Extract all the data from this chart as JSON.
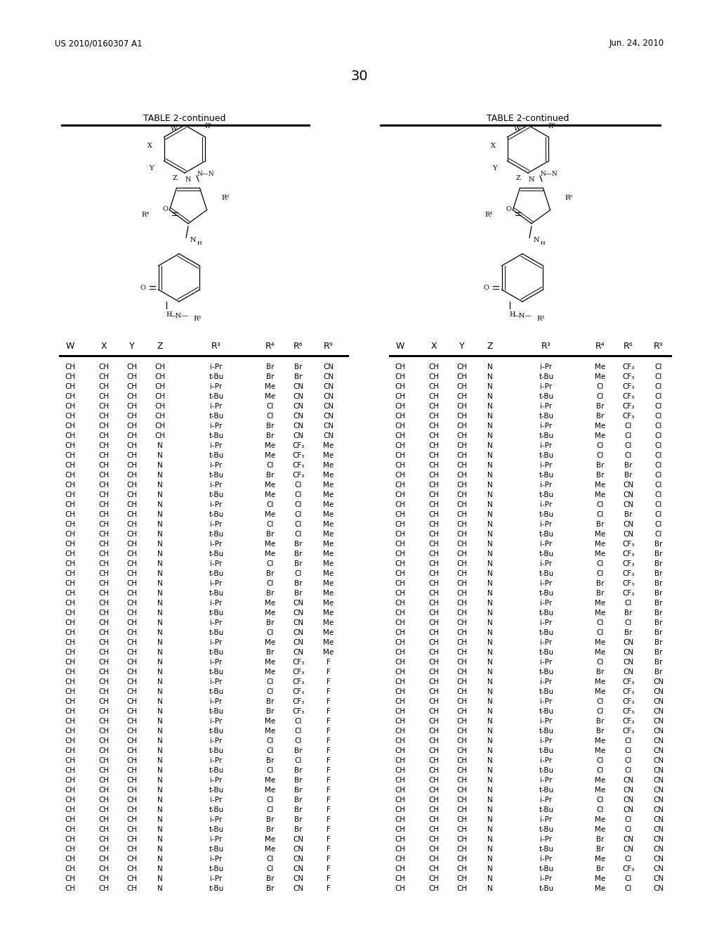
{
  "title_left": "US 2010/0160307 A1",
  "title_right": "Jun. 24, 2010",
  "page_number": "30",
  "table_title": "TABLE 2-continued",
  "bg": "#ffffff",
  "left_table_data": [
    [
      "CH",
      "CH",
      "CH",
      "CH",
      "i-Pr",
      "Br",
      "Br",
      "CN"
    ],
    [
      "CH",
      "CH",
      "CH",
      "CH",
      "t-Bu",
      "Br",
      "Br",
      "CN"
    ],
    [
      "CH",
      "CH",
      "CH",
      "CH",
      "i-Pr",
      "Me",
      "CN",
      "CN"
    ],
    [
      "CH",
      "CH",
      "CH",
      "CH",
      "t-Bu",
      "Me",
      "CN",
      "CN"
    ],
    [
      "CH",
      "CH",
      "CH",
      "CH",
      "i-Pr",
      "Cl",
      "CN",
      "CN"
    ],
    [
      "CH",
      "CH",
      "CH",
      "CH",
      "t-Bu",
      "Cl",
      "CN",
      "CN"
    ],
    [
      "CH",
      "CH",
      "CH",
      "CH",
      "i-Pr",
      "Br",
      "CN",
      "CN"
    ],
    [
      "CH",
      "CH",
      "CH",
      "CH",
      "t-Bu",
      "Br",
      "CN",
      "CN"
    ],
    [
      "CH",
      "CH",
      "CH",
      "N",
      "i-Pr",
      "Me",
      "CF₃",
      "Me"
    ],
    [
      "CH",
      "CH",
      "CH",
      "N",
      "t-Bu",
      "Me",
      "CF₃",
      "Me"
    ],
    [
      "CH",
      "CH",
      "CH",
      "N",
      "i-Pr",
      "Cl",
      "CF₃",
      "Me"
    ],
    [
      "CH",
      "CH",
      "CH",
      "N",
      "t-Bu",
      "Br",
      "CF₃",
      "Me"
    ],
    [
      "CH",
      "CH",
      "CH",
      "N",
      "i-Pr",
      "Me",
      "Cl",
      "Me"
    ],
    [
      "CH",
      "CH",
      "CH",
      "N",
      "t-Bu",
      "Me",
      "Cl",
      "Me"
    ],
    [
      "CH",
      "CH",
      "CH",
      "N",
      "i-Pr",
      "Cl",
      "Cl",
      "Me"
    ],
    [
      "CH",
      "CH",
      "CH",
      "N",
      "t-Bu",
      "Me",
      "Cl",
      "Me"
    ],
    [
      "CH",
      "CH",
      "CH",
      "N",
      "i-Pr",
      "Cl",
      "Cl",
      "Me"
    ],
    [
      "CH",
      "CH",
      "CH",
      "N",
      "t-Bu",
      "Br",
      "Cl",
      "Me"
    ],
    [
      "CH",
      "CH",
      "CH",
      "N",
      "i-Pr",
      "Me",
      "Br",
      "Me"
    ],
    [
      "CH",
      "CH",
      "CH",
      "N",
      "t-Bu",
      "Me",
      "Br",
      "Me"
    ],
    [
      "CH",
      "CH",
      "CH",
      "N",
      "i-Pr",
      "Cl",
      "Br",
      "Me"
    ],
    [
      "CH",
      "CH",
      "CH",
      "N",
      "t-Bu",
      "Br",
      "Cl",
      "Me"
    ],
    [
      "CH",
      "CH",
      "CH",
      "N",
      "i-Pr",
      "Cl",
      "Br",
      "Me"
    ],
    [
      "CH",
      "CH",
      "CH",
      "N",
      "t-Bu",
      "Br",
      "Br",
      "Me"
    ],
    [
      "CH",
      "CH",
      "CH",
      "N",
      "i-Pr",
      "Me",
      "CN",
      "Me"
    ],
    [
      "CH",
      "CH",
      "CH",
      "N",
      "t-Bu",
      "Me",
      "CN",
      "Me"
    ],
    [
      "CH",
      "CH",
      "CH",
      "N",
      "i-Pr",
      "Br",
      "CN",
      "Me"
    ],
    [
      "CH",
      "CH",
      "CH",
      "N",
      "t-Bu",
      "Cl",
      "CN",
      "Me"
    ],
    [
      "CH",
      "CH",
      "CH",
      "N",
      "i-Pr",
      "Me",
      "CN",
      "Me"
    ],
    [
      "CH",
      "CH",
      "CH",
      "N",
      "t-Bu",
      "Br",
      "CN",
      "Me"
    ],
    [
      "CH",
      "CH",
      "CH",
      "N",
      "i-Pr",
      "Me",
      "CF₃",
      "F"
    ],
    [
      "CH",
      "CH",
      "CH",
      "N",
      "t-Bu",
      "Me",
      "CF₃",
      "F"
    ],
    [
      "CH",
      "CH",
      "CH",
      "N",
      "i-Pr",
      "Cl",
      "CF₃",
      "F"
    ],
    [
      "CH",
      "CH",
      "CH",
      "N",
      "t-Bu",
      "Cl",
      "CF₃",
      "F"
    ],
    [
      "CH",
      "CH",
      "CH",
      "N",
      "i-Pr",
      "Br",
      "CF₃",
      "F"
    ],
    [
      "CH",
      "CH",
      "CH",
      "N",
      "t-Bu",
      "Br",
      "CF₃",
      "F"
    ],
    [
      "CH",
      "CH",
      "CH",
      "N",
      "i-Pr",
      "Me",
      "Cl",
      "F"
    ],
    [
      "CH",
      "CH",
      "CH",
      "N",
      "t-Bu",
      "Me",
      "Cl",
      "F"
    ],
    [
      "CH",
      "CH",
      "CH",
      "N",
      "i-Pr",
      "Cl",
      "Cl",
      "F"
    ],
    [
      "CH",
      "CH",
      "CH",
      "N",
      "t-Bu",
      "Cl",
      "Br",
      "F"
    ],
    [
      "CH",
      "CH",
      "CH",
      "N",
      "i-Pr",
      "Br",
      "Cl",
      "F"
    ],
    [
      "CH",
      "CH",
      "CH",
      "N",
      "t-Bu",
      "Cl",
      "Br",
      "F"
    ],
    [
      "CH",
      "CH",
      "CH",
      "N",
      "i-Pr",
      "Me",
      "Br",
      "F"
    ],
    [
      "CH",
      "CH",
      "CH",
      "N",
      "t-Bu",
      "Me",
      "Br",
      "F"
    ],
    [
      "CH",
      "CH",
      "CH",
      "N",
      "i-Pr",
      "Cl",
      "Br",
      "F"
    ],
    [
      "CH",
      "CH",
      "CH",
      "N",
      "t-Bu",
      "Cl",
      "Br",
      "F"
    ],
    [
      "CH",
      "CH",
      "CH",
      "N",
      "i-Pr",
      "Br",
      "Br",
      "F"
    ],
    [
      "CH",
      "CH",
      "CH",
      "N",
      "t-Bu",
      "Br",
      "Br",
      "F"
    ],
    [
      "CH",
      "CH",
      "CH",
      "N",
      "i-Pr",
      "Me",
      "CN",
      "F"
    ],
    [
      "CH",
      "CH",
      "CH",
      "N",
      "t-Bu",
      "Me",
      "CN",
      "F"
    ],
    [
      "CH",
      "CH",
      "CH",
      "N",
      "i-Pr",
      "Cl",
      "CN",
      "F"
    ],
    [
      "CH",
      "CH",
      "CH",
      "N",
      "t-Bu",
      "Cl",
      "CN",
      "F"
    ],
    [
      "CH",
      "CH",
      "CH",
      "N",
      "i-Pr",
      "Br",
      "CN",
      "F"
    ],
    [
      "CH",
      "CH",
      "CH",
      "N",
      "t-Bu",
      "Br",
      "CN",
      "F"
    ]
  ],
  "right_table_data": [
    [
      "CH",
      "CH",
      "CH",
      "N",
      "i-Pr",
      "Me",
      "CF₃",
      "Cl"
    ],
    [
      "CH",
      "CH",
      "CH",
      "N",
      "t-Bu",
      "Me",
      "CF₃",
      "Cl"
    ],
    [
      "CH",
      "CH",
      "CH",
      "N",
      "i-Pr",
      "Cl",
      "CF₃",
      "Cl"
    ],
    [
      "CH",
      "CH",
      "CH",
      "N",
      "t-Bu",
      "Cl",
      "CF₃",
      "Cl"
    ],
    [
      "CH",
      "CH",
      "CH",
      "N",
      "i-Pr",
      "Br",
      "CF₃",
      "Cl"
    ],
    [
      "CH",
      "CH",
      "CH",
      "N",
      "t-Bu",
      "Br",
      "CF₃",
      "Cl"
    ],
    [
      "CH",
      "CH",
      "CH",
      "N",
      "i-Pr",
      "Me",
      "Cl",
      "Cl"
    ],
    [
      "CH",
      "CH",
      "CH",
      "N",
      "t-Bu",
      "Me",
      "Cl",
      "Cl"
    ],
    [
      "CH",
      "CH",
      "CH",
      "N",
      "i-Pr",
      "Cl",
      "Cl",
      "Cl"
    ],
    [
      "CH",
      "CH",
      "CH",
      "N",
      "t-Bu",
      "Cl",
      "Cl",
      "Cl"
    ],
    [
      "CH",
      "CH",
      "CH",
      "N",
      "i-Pr",
      "Br",
      "Br",
      "Cl"
    ],
    [
      "CH",
      "CH",
      "CH",
      "N",
      "t-Bu",
      "Br",
      "Br",
      "Cl"
    ],
    [
      "CH",
      "CH",
      "CH",
      "N",
      "i-Pr",
      "Me",
      "CN",
      "Cl"
    ],
    [
      "CH",
      "CH",
      "CH",
      "N",
      "t-Bu",
      "Me",
      "CN",
      "Cl"
    ],
    [
      "CH",
      "CH",
      "CH",
      "N",
      "i-Pr",
      "Cl",
      "CN",
      "Cl"
    ],
    [
      "CH",
      "CH",
      "CH",
      "N",
      "t-Bu",
      "Cl",
      "Br",
      "Cl"
    ],
    [
      "CH",
      "CH",
      "CH",
      "N",
      "i-Pr",
      "Br",
      "CN",
      "Cl"
    ],
    [
      "CH",
      "CH",
      "CH",
      "N",
      "t-Bu",
      "Me",
      "CN",
      "Cl"
    ],
    [
      "CH",
      "CH",
      "CH",
      "N",
      "i-Pr",
      "Me",
      "CF₃",
      "Br"
    ],
    [
      "CH",
      "CH",
      "CH",
      "N",
      "t-Bu",
      "Me",
      "CF₃",
      "Br"
    ],
    [
      "CH",
      "CH",
      "CH",
      "N",
      "i-Pr",
      "Cl",
      "CF₃",
      "Br"
    ],
    [
      "CH",
      "CH",
      "CH",
      "N",
      "t-Bu",
      "Cl",
      "CF₃",
      "Br"
    ],
    [
      "CH",
      "CH",
      "CH",
      "N",
      "i-Pr",
      "Br",
      "CF₃",
      "Br"
    ],
    [
      "CH",
      "CH",
      "CH",
      "N",
      "t-Bu",
      "Br",
      "CF₃",
      "Br"
    ],
    [
      "CH",
      "CH",
      "CH",
      "N",
      "i-Pr",
      "Me",
      "Cl",
      "Br"
    ],
    [
      "CH",
      "CH",
      "CH",
      "N",
      "t-Bu",
      "Me",
      "Br",
      "Br"
    ],
    [
      "CH",
      "CH",
      "CH",
      "N",
      "i-Pr",
      "Cl",
      "Cl",
      "Br"
    ],
    [
      "CH",
      "CH",
      "CH",
      "N",
      "t-Bu",
      "Cl",
      "Br",
      "Br"
    ],
    [
      "CH",
      "CH",
      "CH",
      "N",
      "i-Pr",
      "Me",
      "CN",
      "Br"
    ],
    [
      "CH",
      "CH",
      "CH",
      "N",
      "t-Bu",
      "Me",
      "CN",
      "Br"
    ],
    [
      "CH",
      "CH",
      "CH",
      "N",
      "i-Pr",
      "Cl",
      "CN",
      "Br"
    ],
    [
      "CH",
      "CH",
      "CH",
      "N",
      "t-Bu",
      "Br",
      "CN",
      "Br"
    ],
    [
      "CH",
      "CH",
      "CH",
      "N",
      "i-Pr",
      "Me",
      "CF₃",
      "CN"
    ],
    [
      "CH",
      "CH",
      "CH",
      "N",
      "t-Bu",
      "Me",
      "CF₃",
      "CN"
    ],
    [
      "CH",
      "CH",
      "CH",
      "N",
      "i-Pr",
      "Cl",
      "CF₃",
      "CN"
    ],
    [
      "CH",
      "CH",
      "CH",
      "N",
      "t-Bu",
      "Cl",
      "CF₃",
      "CN"
    ],
    [
      "CH",
      "CH",
      "CH",
      "N",
      "i-Pr",
      "Br",
      "CF₃",
      "CN"
    ],
    [
      "CH",
      "CH",
      "CH",
      "N",
      "t-Bu",
      "Br",
      "CF₃",
      "CN"
    ],
    [
      "CH",
      "CH",
      "CH",
      "N",
      "i-Pr",
      "Me",
      "Cl",
      "CN"
    ],
    [
      "CH",
      "CH",
      "CH",
      "N",
      "t-Bu",
      "Me",
      "Cl",
      "CN"
    ],
    [
      "CH",
      "CH",
      "CH",
      "N",
      "i-Pr",
      "Cl",
      "Cl",
      "CN"
    ],
    [
      "CH",
      "CH",
      "CH",
      "N",
      "t-Bu",
      "Cl",
      "Cl",
      "CN"
    ],
    [
      "CH",
      "CH",
      "CH",
      "N",
      "i-Pr",
      "Me",
      "CN",
      "CN"
    ],
    [
      "CH",
      "CH",
      "CH",
      "N",
      "t-Bu",
      "Me",
      "CN",
      "CN"
    ],
    [
      "CH",
      "CH",
      "CH",
      "N",
      "i-Pr",
      "Cl",
      "CN",
      "CN"
    ],
    [
      "CH",
      "CH",
      "CH",
      "N",
      "t-Bu",
      "Cl",
      "CN",
      "CN"
    ],
    [
      "CH",
      "CH",
      "CH",
      "N",
      "i-Pr",
      "Me",
      "Cl",
      "CN"
    ],
    [
      "CH",
      "CH",
      "CH",
      "N",
      "t-Bu",
      "Me",
      "Cl",
      "CN"
    ],
    [
      "CH",
      "CH",
      "CH",
      "N",
      "i-Pr",
      "Br",
      "CN",
      "CN"
    ],
    [
      "CH",
      "CH",
      "CH",
      "N",
      "t-Bu",
      "Br",
      "CN",
      "CN"
    ],
    [
      "CH",
      "CH",
      "CH",
      "N",
      "i-Pr",
      "Me",
      "Cl",
      "CN"
    ],
    [
      "CH",
      "CH",
      "CH",
      "N",
      "t-Bu",
      "Br",
      "CF₃",
      "CN"
    ],
    [
      "CH",
      "CH",
      "CH",
      "N",
      "i-Pr",
      "Me",
      "Cl",
      "CN"
    ],
    [
      "CH",
      "CH",
      "CH",
      "N",
      "t-Bu",
      "Me",
      "Cl",
      "CN"
    ]
  ]
}
